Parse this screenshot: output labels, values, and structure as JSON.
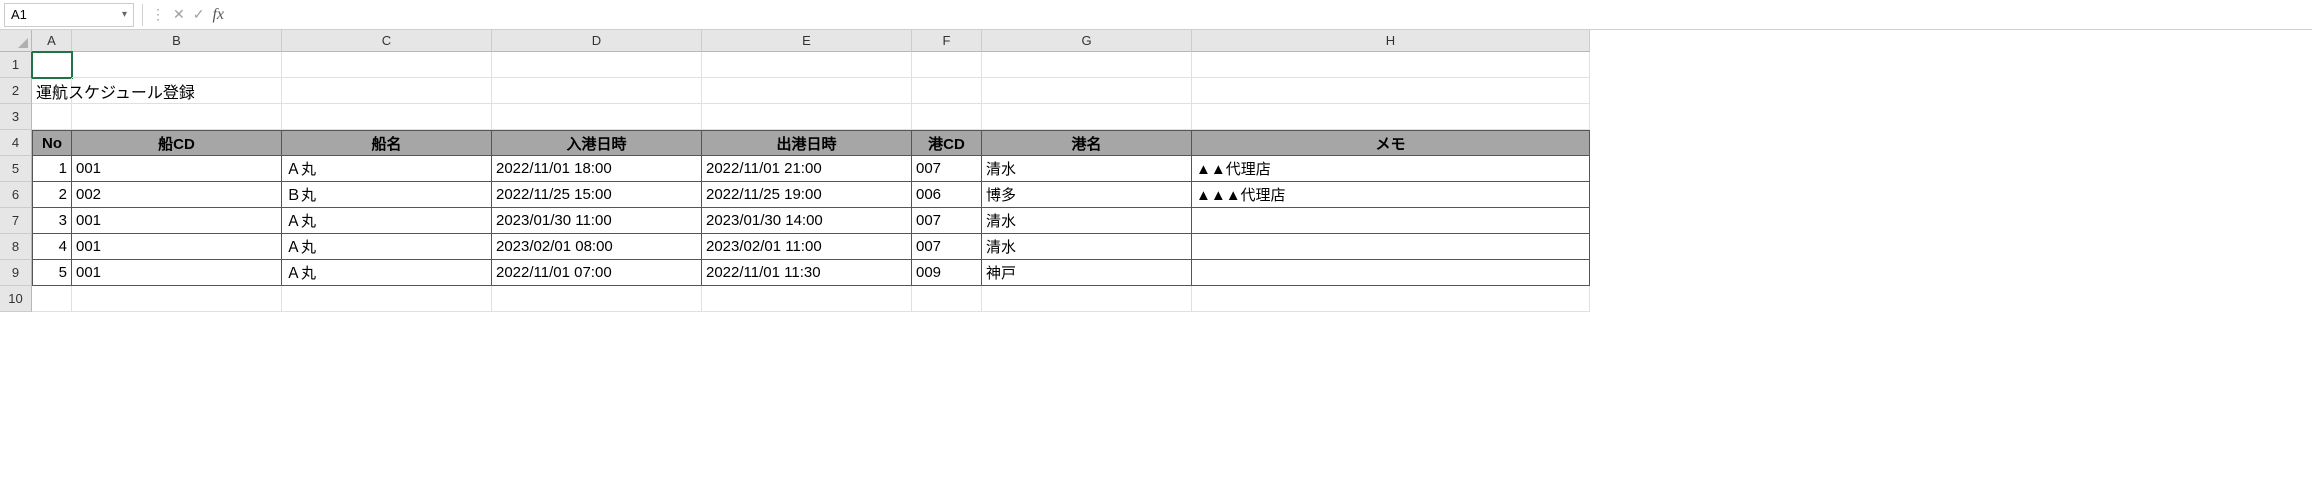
{
  "formula_bar": {
    "cell_ref": "A1",
    "formula_value": "",
    "cancel_icon": "✕",
    "confirm_icon": "✓",
    "fx_label": "fx",
    "dots": "⋮"
  },
  "columns": [
    {
      "letter": "A",
      "class": "cA"
    },
    {
      "letter": "B",
      "class": "cB"
    },
    {
      "letter": "C",
      "class": "cC"
    },
    {
      "letter": "D",
      "class": "cD"
    },
    {
      "letter": "E",
      "class": "cE"
    },
    {
      "letter": "F",
      "class": "cF"
    },
    {
      "letter": "G",
      "class": "cG"
    },
    {
      "letter": "H",
      "class": "cH"
    }
  ],
  "row_labels": [
    "1",
    "2",
    "3",
    "4",
    "5",
    "6",
    "7",
    "8",
    "9",
    "10"
  ],
  "sheet": {
    "title": "運航スケジュール登録",
    "headers": {
      "no": "No",
      "ship_cd": "船CD",
      "ship_name": "船名",
      "arrival": "入港日時",
      "departure": "出港日時",
      "port_cd": "港CD",
      "port_name": "港名",
      "memo": "メモ"
    },
    "rows": [
      {
        "no": "1",
        "ship_cd": "001",
        "ship_name": "Ａ丸",
        "arrival": "2022/11/01 18:00",
        "departure": "2022/11/01 21:00",
        "port_cd": "007",
        "port_name": "清水",
        "memo": "▲▲代理店"
      },
      {
        "no": "2",
        "ship_cd": "002",
        "ship_name": "Ｂ丸",
        "arrival": "2022/11/25 15:00",
        "departure": "2022/11/25 19:00",
        "port_cd": "006",
        "port_name": "博多",
        "memo": "▲▲▲代理店"
      },
      {
        "no": "3",
        "ship_cd": "001",
        "ship_name": "Ａ丸",
        "arrival": "2023/01/30 11:00",
        "departure": "2023/01/30 14:00",
        "port_cd": "007",
        "port_name": "清水",
        "memo": ""
      },
      {
        "no": "4",
        "ship_cd": "001",
        "ship_name": "Ａ丸",
        "arrival": "2023/02/01 08:00",
        "departure": "2023/02/01 11:00",
        "port_cd": "007",
        "port_name": "清水",
        "memo": ""
      },
      {
        "no": "5",
        "ship_cd": "001",
        "ship_name": "Ａ丸",
        "arrival": "2022/11/01 07:00",
        "departure": "2022/11/01 11:30",
        "port_cd": "009",
        "port_name": "神戸",
        "memo": ""
      }
    ]
  },
  "style": {
    "header_bg": "#a6a6a6",
    "grid_border": "#e0e0e0",
    "data_border": "#555555",
    "selection_color": "#217346"
  }
}
